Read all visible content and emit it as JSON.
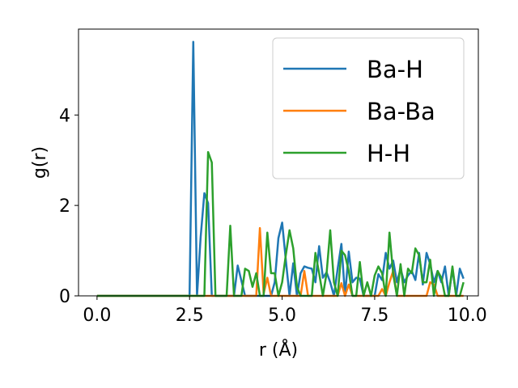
{
  "chart_data": {
    "type": "line",
    "xlabel": "r (Å)",
    "ylabel": "g(r)",
    "xlim": [
      -0.5,
      10.3
    ],
    "ylim": [
      0,
      5.9
    ],
    "xticks": [
      "0.0",
      "2.5",
      "5.0",
      "7.5",
      "10.0"
    ],
    "xtick_values": [
      0,
      2.5,
      5.0,
      7.5,
      10.0
    ],
    "yticks": [
      "0",
      "2",
      "4"
    ],
    "ytick_values": [
      0,
      2,
      4
    ],
    "grid": false,
    "legend_position": "top-right",
    "series": [
      {
        "name": "Ba-H",
        "color": "#1f77b4",
        "x": [
          0.0,
          2.5,
          2.6,
          2.7,
          2.8,
          2.9,
          3.0,
          3.1,
          3.2,
          3.4,
          3.6,
          3.7,
          3.8,
          4.0,
          4.1,
          4.2,
          4.3,
          4.4,
          4.5,
          4.6,
          4.7,
          4.8,
          4.9,
          5.0,
          5.1,
          5.2,
          5.3,
          5.4,
          5.5,
          5.6,
          5.7,
          5.8,
          5.9,
          6.0,
          6.1,
          6.2,
          6.3,
          6.4,
          6.5,
          6.6,
          6.7,
          6.8,
          6.9,
          7.0,
          7.1,
          7.2,
          7.3,
          7.4,
          7.5,
          7.6,
          7.7,
          7.8,
          7.9,
          8.0,
          8.1,
          8.2,
          8.3,
          8.4,
          8.5,
          8.6,
          8.7,
          8.8,
          8.9,
          9.0,
          9.1,
          9.2,
          9.3,
          9.4,
          9.5,
          9.6,
          9.7,
          9.8,
          9.9
        ],
        "y": [
          0.0,
          0.0,
          5.62,
          0.0,
          1.3,
          2.27,
          2.05,
          0.0,
          0.0,
          0.0,
          0.0,
          0.0,
          0.67,
          0.0,
          0.0,
          0.0,
          0.0,
          0.0,
          0.0,
          0.0,
          0.0,
          0.3,
          1.28,
          1.62,
          0.8,
          0.0,
          0.72,
          0.0,
          0.5,
          0.65,
          0.62,
          0.6,
          0.3,
          1.1,
          0.4,
          0.52,
          0.3,
          0.0,
          0.6,
          1.15,
          0.0,
          0.98,
          0.3,
          0.4,
          0.38,
          0.0,
          0.0,
          0.0,
          0.0,
          0.48,
          0.35,
          0.95,
          0.6,
          0.78,
          0.3,
          0.6,
          0.3,
          0.45,
          0.55,
          0.35,
          0.95,
          0.25,
          0.95,
          0.7,
          0.3,
          0.55,
          0.3,
          0.65,
          0.0,
          0.6,
          0.0,
          0.6,
          0.38
        ]
      },
      {
        "name": "Ba-Ba",
        "color": "#ff7f0e",
        "x": [
          0.0,
          4.0,
          4.1,
          4.2,
          4.3,
          4.4,
          4.5,
          4.6,
          4.7,
          5.5,
          5.6,
          5.7,
          5.8,
          6.5,
          6.6,
          6.7,
          6.8,
          6.9,
          7.5,
          7.6,
          7.7,
          7.8,
          7.9,
          8.0,
          8.1,
          8.2,
          8.9,
          9.0,
          9.1,
          9.2,
          9.3,
          9.9
        ],
        "y": [
          0.0,
          0.0,
          0.0,
          0.0,
          0.0,
          1.5,
          0.05,
          0.4,
          0.0,
          0.0,
          0.55,
          0.0,
          0.0,
          0.0,
          0.28,
          0.0,
          0.25,
          0.0,
          0.0,
          0.0,
          0.15,
          0.0,
          0.3,
          0.55,
          0.0,
          0.0,
          0.0,
          0.3,
          0.25,
          0.0,
          0.0,
          0.0
        ]
      },
      {
        "name": "H-H",
        "color": "#2ca02c",
        "x": [
          0.0,
          2.9,
          3.0,
          3.1,
          3.2,
          3.5,
          3.6,
          3.7,
          3.9,
          4.0,
          4.1,
          4.2,
          4.3,
          4.4,
          4.5,
          4.6,
          4.7,
          4.8,
          4.9,
          5.0,
          5.1,
          5.2,
          5.3,
          5.4,
          5.5,
          5.6,
          5.7,
          5.8,
          5.9,
          6.0,
          6.1,
          6.2,
          6.3,
          6.4,
          6.5,
          6.6,
          6.7,
          6.8,
          6.9,
          7.0,
          7.1,
          7.2,
          7.3,
          7.4,
          7.5,
          7.6,
          7.7,
          7.8,
          7.9,
          8.0,
          8.1,
          8.2,
          8.3,
          8.4,
          8.5,
          8.6,
          8.7,
          8.8,
          8.9,
          9.0,
          9.1,
          9.2,
          9.3,
          9.4,
          9.5,
          9.6,
          9.7,
          9.8,
          9.9
        ],
        "y": [
          0.0,
          0.0,
          3.18,
          2.95,
          0.0,
          0.0,
          1.55,
          0.0,
          0.0,
          0.6,
          0.55,
          0.2,
          0.5,
          0.0,
          0.0,
          1.4,
          0.5,
          0.5,
          0.0,
          0.3,
          0.9,
          1.45,
          1.05,
          0.2,
          0.0,
          0.0,
          0.0,
          0.0,
          0.95,
          0.5,
          0.0,
          0.5,
          1.45,
          0.3,
          0.0,
          1.0,
          0.9,
          0.55,
          0.0,
          0.0,
          0.75,
          0.0,
          0.3,
          0.0,
          0.45,
          0.65,
          0.5,
          0.0,
          1.4,
          0.48,
          0.0,
          0.7,
          0.0,
          0.6,
          0.5,
          1.05,
          0.9,
          0.3,
          0.3,
          0.8,
          0.0,
          0.55,
          0.4,
          0.0,
          0.0,
          0.65,
          0.0,
          0.0,
          0.3
        ]
      }
    ]
  }
}
